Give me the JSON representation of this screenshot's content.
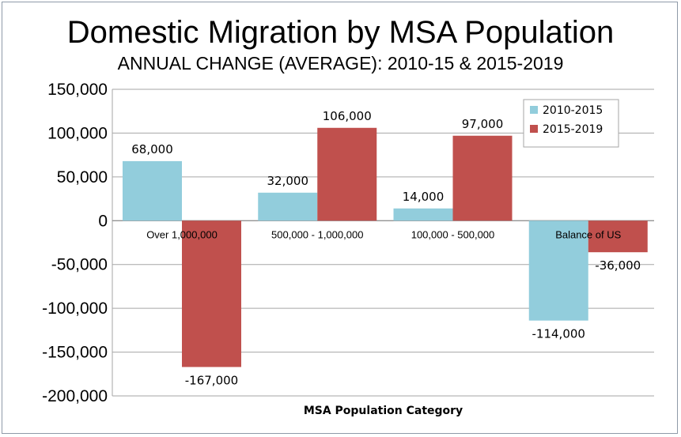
{
  "chart_data": {
    "type": "bar",
    "title": "Domestic Migration by MSA Population",
    "subtitle": "ANNUAL CHANGE (AVERAGE): 2010-15 & 2015-2019",
    "xlabel": "MSA Population Category",
    "ylabel": "",
    "categories": [
      "Over 1,000,000",
      "500,000 - 1,000,000",
      "100,000 - 500,000",
      "Balance of US"
    ],
    "series": [
      {
        "name": "2010-2015",
        "color": "#92cddc",
        "values": [
          68000,
          32000,
          14000,
          -114000
        ],
        "labels": [
          "68,000",
          "32,000",
          "14,000",
          "-114,000"
        ]
      },
      {
        "name": "2015-2019",
        "color": "#c0504d",
        "values": [
          -167000,
          106000,
          97000,
          -36000
        ],
        "labels": [
          "-167,000",
          "106,000",
          "97,000",
          "-36,000"
        ]
      }
    ],
    "ylim": [
      -200000,
      150000
    ],
    "yticks": [
      150000,
      100000,
      50000,
      0,
      -50000,
      -100000,
      -150000,
      -200000
    ],
    "ytick_labels": [
      "150,000",
      "100,000",
      "50,000",
      "0",
      "-50,000",
      "-100,000",
      "-150,000",
      "-200,000"
    ],
    "grid": true,
    "legend": "top-right"
  }
}
